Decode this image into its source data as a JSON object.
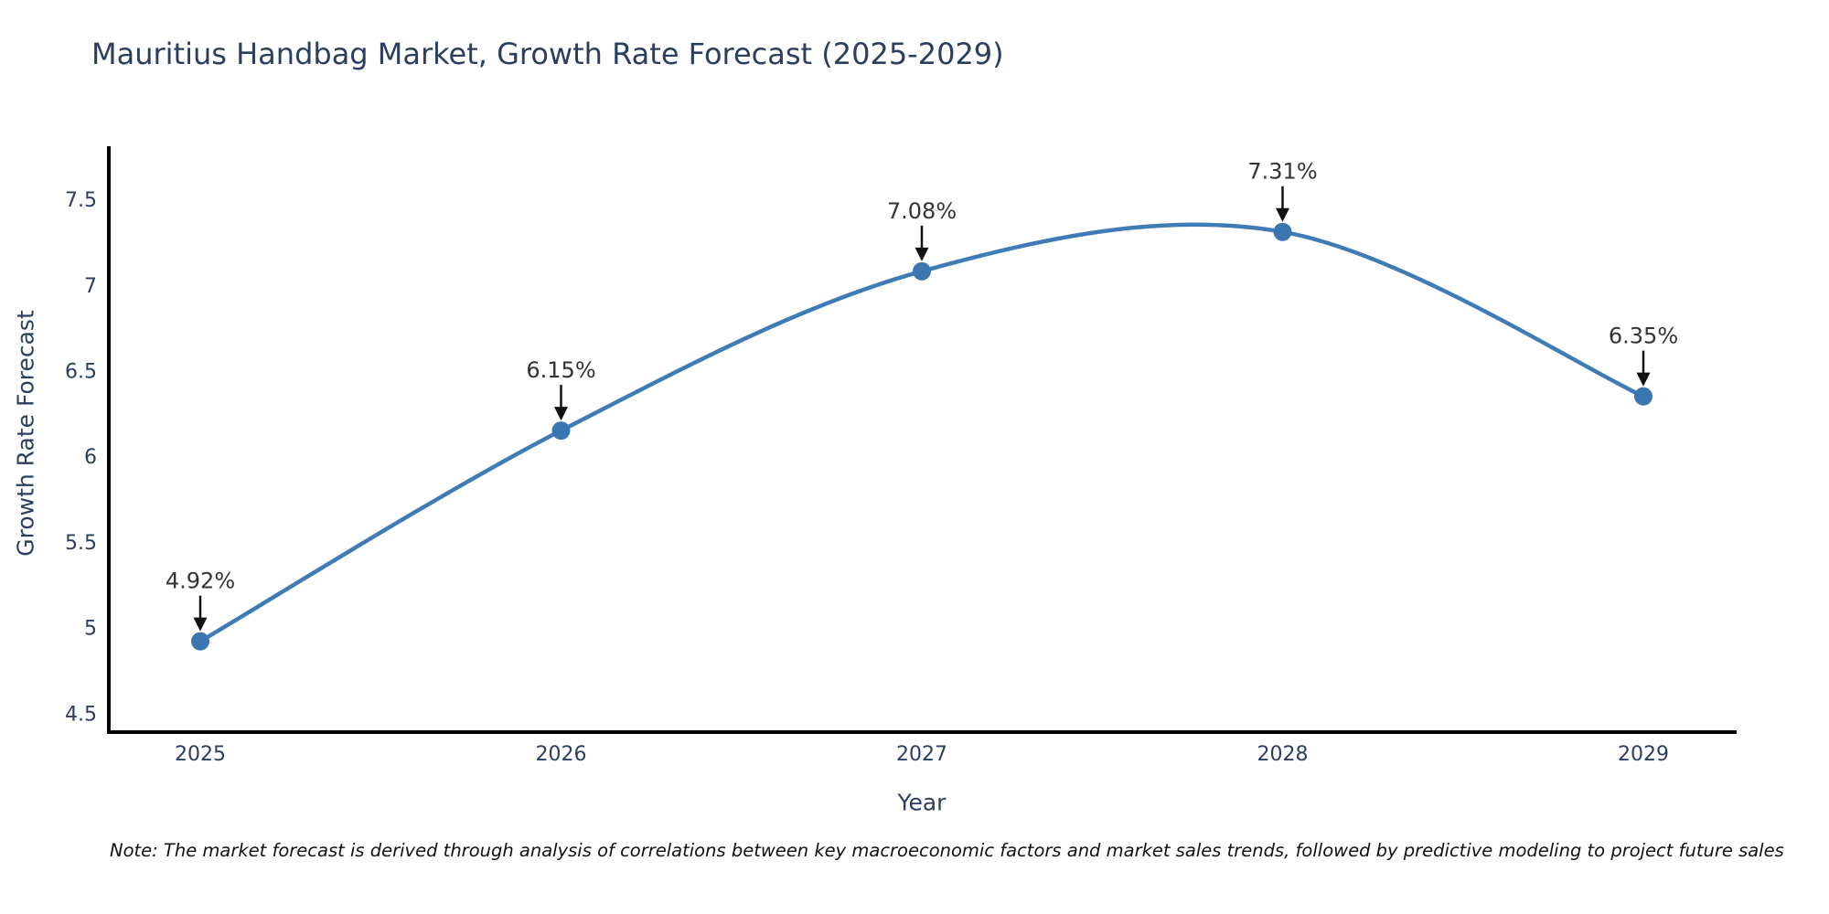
{
  "chart_data": {
    "type": "line",
    "title": "Mauritius Handbag Market, Growth Rate Forecast (2025-2029)",
    "xlabel": "Year",
    "ylabel": "Growth Rate Forecast",
    "categories": [
      "2025",
      "2026",
      "2027",
      "2028",
      "2029"
    ],
    "series": [
      {
        "name": "Growth Rate Forecast",
        "values": [
          4.92,
          6.15,
          7.08,
          7.31,
          6.35
        ]
      }
    ],
    "point_labels": [
      "4.92%",
      "6.15%",
      "7.08%",
      "7.31%",
      "6.35%"
    ],
    "yticks": [
      4.5,
      5,
      5.5,
      6,
      6.5,
      7,
      7.5
    ],
    "ylim": [
      4.39,
      7.81
    ],
    "line_shape": "spline",
    "grid": false,
    "legend": "none",
    "colors": {
      "line": "#3f7cb6",
      "marker": "#3a76b0",
      "axis": "#000000",
      "tick_label": "#2a3f5f",
      "annotation_text": "#333333",
      "annotation_arrow": "#111111"
    },
    "note": "Note: The market forecast is derived through analysis of correlations between key macroeconomic factors and market sales trends, followed by predictive modeling to project future sales"
  }
}
